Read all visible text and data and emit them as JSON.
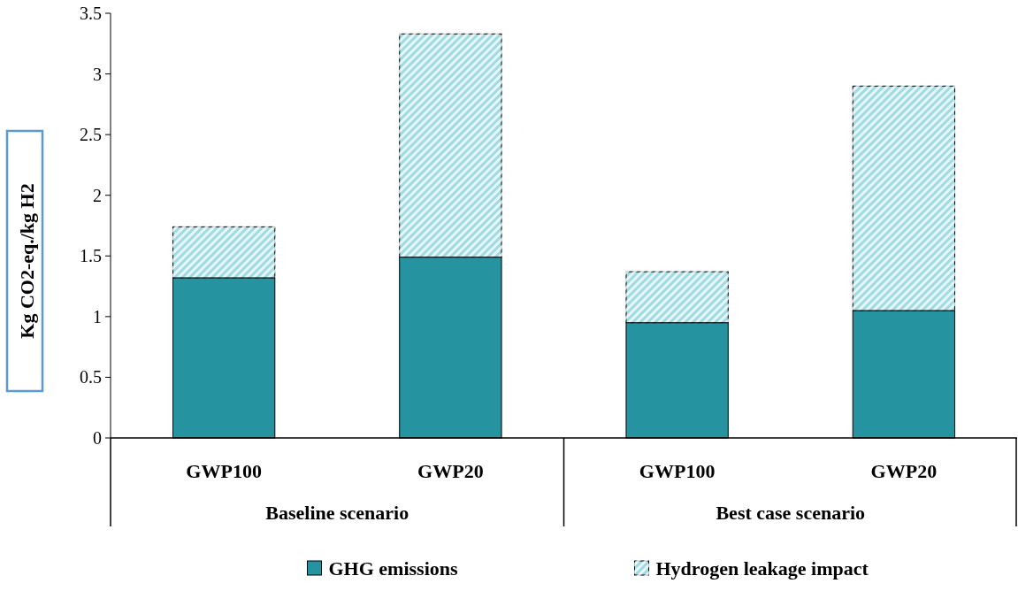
{
  "chart_data": {
    "type": "bar",
    "stacked": true,
    "ylabel": "Kg CO2-eq./kg H2",
    "categories": [
      "GWP100",
      "GWP20",
      "GWP100",
      "GWP20"
    ],
    "annotations": [
      "Baseline scenario",
      "Best case scenario"
    ],
    "series": [
      {
        "name": "GHG emissions",
        "color": "#2593a0",
        "values": [
          1.32,
          1.49,
          0.95,
          1.05
        ]
      },
      {
        "name": "Hydrogen leakage impact",
        "color": "#9fdbe3",
        "values": [
          0.42,
          1.84,
          0.42,
          1.85
        ]
      }
    ],
    "ylim": [
      0,
      3.5
    ],
    "yticks": [
      0,
      0.5,
      1,
      1.5,
      2,
      2.5,
      3,
      3.5
    ],
    "grid": false,
    "legend": "bottom"
  }
}
